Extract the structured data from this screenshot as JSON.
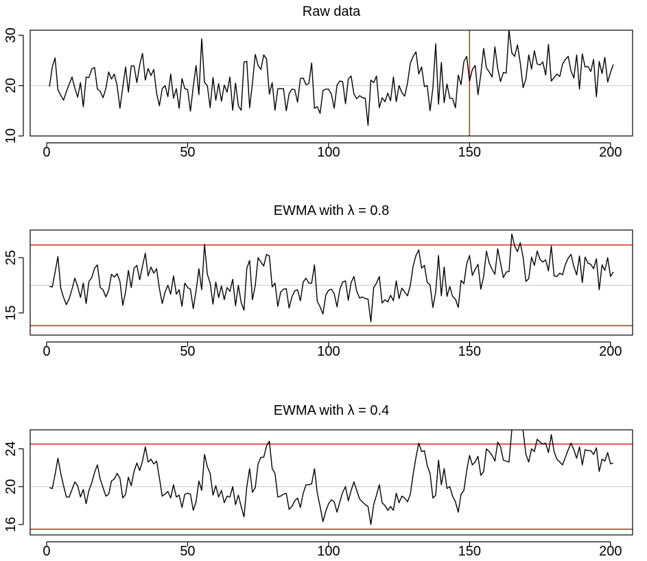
{
  "chart_data": [
    {
      "type": "line",
      "title": "Raw data",
      "xlim": [
        1,
        201
      ],
      "ylim": [
        10,
        31
      ],
      "xticks": [
        0,
        50,
        100,
        150,
        200
      ],
      "yticks": [
        10,
        20,
        30
      ],
      "center_line": 20,
      "vertical_line": 150,
      "colors": {
        "series": "#000000",
        "control": "#e5262a",
        "center": "#d0d0d0"
      },
      "series": [
        {
          "values": [
            19.8,
            23.7,
            25.5,
            19.1,
            18.1,
            17.1,
            18.8,
            20.3,
            21.7,
            19.5,
            17.7,
            20.6,
            15.8,
            21.7,
            21.6,
            23.3,
            23.6,
            19.3,
            18.9,
            17.6,
            19.4,
            22.7,
            21.3,
            22.3,
            20.0,
            15.5,
            19.7,
            23.7,
            18.7,
            23.9,
            23.9,
            20.6,
            24.1,
            26.4,
            21.1,
            23.4,
            22.0,
            23.2,
            18.5,
            16.0,
            19.4,
            20.0,
            17.8,
            22.3,
            17.5,
            19.4,
            15.5,
            21.4,
            19.4,
            19.2,
            14.9,
            19.8,
            24.0,
            18.2,
            29.3,
            20.6,
            20.0,
            15.6,
            21.6,
            17.1,
            20.4,
            16.9,
            20.1,
            18.7,
            21.7,
            15.1,
            20.5,
            16.0,
            15.1,
            24.7,
            24.8,
            15.6,
            20.5,
            26.2,
            24.0,
            23.2,
            26.1,
            25.3,
            18.3,
            20.6,
            15.1,
            19.4,
            19.4,
            19.4,
            15.0,
            18.4,
            19.3,
            19.2,
            16.7,
            21.4,
            21.5,
            20.2,
            20.4,
            24.5,
            15.5,
            15.8,
            14.5,
            19.0,
            19.3,
            19.3,
            18.3,
            15.5,
            20.1,
            20.9,
            20.8,
            16.4,
            21.3,
            21.9,
            18.3,
            17.4,
            18.0,
            17.6,
            17.5,
            12.1,
            21.1,
            20.6,
            21.9,
            15.6,
            17.6,
            16.8,
            18.5,
            17.0,
            21.7,
            16.8,
            20.0,
            18.6,
            17.9,
            20.5,
            24.4,
            25.8,
            26.7,
            22.3,
            23.7,
            19.8,
            20.0,
            15.0,
            19.5,
            28.3,
            16.3,
            24.6,
            16.6,
            20.3,
            17.5,
            17.4,
            15.6,
            22.1,
            20.2,
            24.8,
            25.8,
            20.9,
            23.2,
            24.0,
            18.2,
            22.2,
            27.4,
            23.5,
            22.7,
            21.7,
            27.7,
            23.4,
            20.8,
            22.6,
            22.5,
            31.0,
            26.5,
            25.8,
            28.1,
            24.5,
            19.6,
            21.3,
            26.1,
            23.3,
            26.9,
            24.3,
            24.1,
            24.7,
            22.1,
            28.2,
            20.9,
            21.6,
            22.3,
            21.8,
            24.3,
            25.2,
            25.8,
            22.9,
            21.5,
            26.1,
            19.3,
            26.3,
            23.7,
            23.8,
            22.8,
            25.2,
            17.8,
            24.8,
            22.4,
            25.6,
            20.7,
            22.6,
            24.2
          ]
        }
      ]
    },
    {
      "type": "line",
      "title": "EWMA with λ = 0.8",
      "xlim": [
        1,
        201
      ],
      "ylim": [
        11,
        30
      ],
      "xticks": [
        0,
        50,
        100,
        150,
        200
      ],
      "yticks": [
        15,
        25
      ],
      "center_line": 20,
      "control_limits": [
        12.7,
        27.3
      ],
      "colors": {
        "series": "#000000",
        "control": "#e5262a",
        "center": "#d0d0d0"
      },
      "series": [
        {
          "values": [
            19.8,
            19.7,
            22.4,
            25.2,
            19.5,
            17.8,
            16.5,
            17.6,
            19.3,
            21.3,
            19.8,
            17.8,
            20.4,
            16.7,
            20.7,
            21.4,
            23.1,
            23.7,
            19.6,
            19.2,
            17.9,
            19.1,
            22.0,
            21.5,
            22.1,
            20.7,
            16.4,
            18.8,
            22.7,
            19.6,
            23.1,
            23.6,
            21.0,
            23.5,
            25.8,
            21.7,
            23.3,
            22.2,
            23.0,
            19.4,
            16.7,
            18.8,
            20.0,
            18.4,
            21.7,
            18.4,
            19.2,
            16.2,
            20.4,
            19.6,
            19.3,
            15.8,
            19.0,
            23.0,
            19.2,
            27.4,
            22.0,
            20.4,
            16.6,
            20.6,
            17.8,
            19.9,
            17.4,
            19.6,
            18.9,
            21.1,
            16.3,
            20.0,
            16.9,
            15.5,
            23.1,
            24.5,
            17.4,
            20.0,
            25.0,
            24.2,
            23.5,
            25.6,
            25.3,
            19.7,
            20.4,
            16.2,
            18.8,
            19.3,
            19.4,
            15.9,
            17.9,
            19.0,
            19.2,
            17.2,
            20.6,
            21.3,
            20.4,
            20.4,
            23.7,
            17.1,
            16.1,
            14.8,
            18.2,
            19.1,
            19.3,
            18.5,
            16.1,
            19.3,
            20.6,
            20.8,
            17.3,
            20.5,
            21.6,
            18.9,
            17.7,
            17.9,
            17.6,
            17.5,
            13.4,
            19.6,
            20.4,
            21.6,
            16.8,
            17.4,
            17.0,
            18.2,
            17.2,
            20.8,
            17.6,
            19.5,
            18.8,
            18.1,
            20.0,
            23.5,
            25.4,
            26.4,
            23.1,
            23.6,
            20.5,
            20.1,
            16.0,
            18.8,
            25.4,
            18.1,
            23.3,
            18.0,
            19.8,
            18.0,
            17.5,
            16.0,
            20.9,
            20.3,
            23.9,
            25.4,
            21.8,
            22.9,
            23.8,
            19.3,
            21.6,
            26.2,
            24.0,
            22.9,
            22.0,
            26.6,
            24.0,
            21.4,
            22.4,
            22.5,
            29.3,
            27.1,
            26.1,
            27.7,
            25.1,
            20.7,
            21.2,
            25.1,
            23.6,
            26.2,
            24.7,
            24.2,
            24.6,
            22.6,
            27.1,
            21.7,
            21.6,
            22.2,
            21.9,
            23.8,
            24.9,
            25.6,
            23.4,
            21.9,
            25.3,
            20.5,
            25.1,
            24.0,
            23.8,
            23.0,
            24.8,
            19.2,
            23.7,
            22.7,
            25.0,
            21.6,
            22.4
          ]
        }
      ]
    },
    {
      "type": "line",
      "title": "EWMA with λ = 0.4",
      "xlim": [
        1,
        201
      ],
      "ylim": [
        14.9,
        26.0
      ],
      "xticks": [
        0,
        50,
        100,
        150,
        200
      ],
      "yticks": [
        16,
        20,
        24
      ],
      "center_line": 20,
      "control_limits": [
        15.5,
        24.5
      ],
      "colors": {
        "series": "#000000",
        "control": "#e5262a",
        "center": "#d0d0d0"
      },
      "series": [
        {
          "values": [
            19.9,
            19.8,
            21.3,
            23.0,
            21.4,
            20.1,
            18.9,
            18.9,
            19.7,
            20.5,
            20.1,
            18.9,
            19.7,
            18.2,
            19.6,
            20.4,
            21.5,
            22.3,
            20.8,
            19.9,
            19.0,
            19.2,
            20.6,
            20.8,
            21.4,
            20.9,
            18.8,
            19.2,
            21.0,
            20.1,
            21.6,
            22.5,
            21.7,
            22.7,
            24.2,
            22.6,
            22.9,
            22.4,
            22.7,
            20.9,
            19.0,
            19.2,
            19.5,
            18.8,
            20.2,
            18.9,
            19.1,
            17.8,
            19.2,
            19.3,
            19.2,
            17.5,
            18.4,
            20.6,
            19.6,
            23.4,
            22.1,
            21.4,
            19.1,
            20.1,
            18.9,
            19.6,
            18.3,
            19.0,
            18.9,
            20.0,
            18.1,
            19.1,
            17.9,
            16.8,
            20.0,
            21.9,
            19.4,
            19.9,
            22.4,
            23.1,
            23.1,
            24.3,
            24.8,
            21.9,
            21.4,
            18.9,
            19.0,
            19.2,
            19.3,
            17.6,
            17.9,
            18.5,
            18.8,
            17.8,
            19.3,
            20.2,
            20.2,
            20.3,
            21.9,
            19.3,
            17.9,
            16.3,
            17.4,
            18.2,
            18.6,
            18.4,
            17.3,
            18.4,
            19.4,
            20.0,
            18.5,
            19.6,
            20.5,
            19.6,
            18.7,
            18.4,
            18.1,
            17.9,
            16.0,
            18.1,
            19.1,
            20.2,
            18.3,
            18.0,
            17.5,
            17.9,
            17.5,
            19.3,
            18.3,
            19.0,
            18.8,
            18.4,
            19.2,
            21.3,
            23.1,
            24.6,
            23.7,
            23.8,
            22.2,
            21.4,
            18.8,
            19.1,
            22.8,
            20.2,
            21.9,
            19.8,
            20.0,
            19.0,
            18.4,
            17.3,
            19.2,
            19.6,
            21.7,
            23.3,
            22.3,
            22.6,
            23.2,
            21.2,
            21.6,
            24.0,
            23.7,
            23.3,
            22.7,
            24.7,
            24.2,
            22.8,
            22.7,
            22.6,
            26.0,
            26.1,
            26.0,
            26.8,
            25.9,
            23.4,
            22.6,
            24.0,
            23.7,
            25.0,
            24.7,
            24.5,
            24.6,
            23.6,
            25.5,
            23.7,
            22.9,
            22.6,
            22.3,
            23.1,
            23.9,
            24.6,
            23.9,
            23.0,
            24.2,
            22.3,
            23.9,
            23.8,
            23.8,
            23.4,
            24.1,
            21.6,
            22.9,
            22.7,
            23.6,
            22.4,
            22.5
          ]
        }
      ]
    }
  ]
}
